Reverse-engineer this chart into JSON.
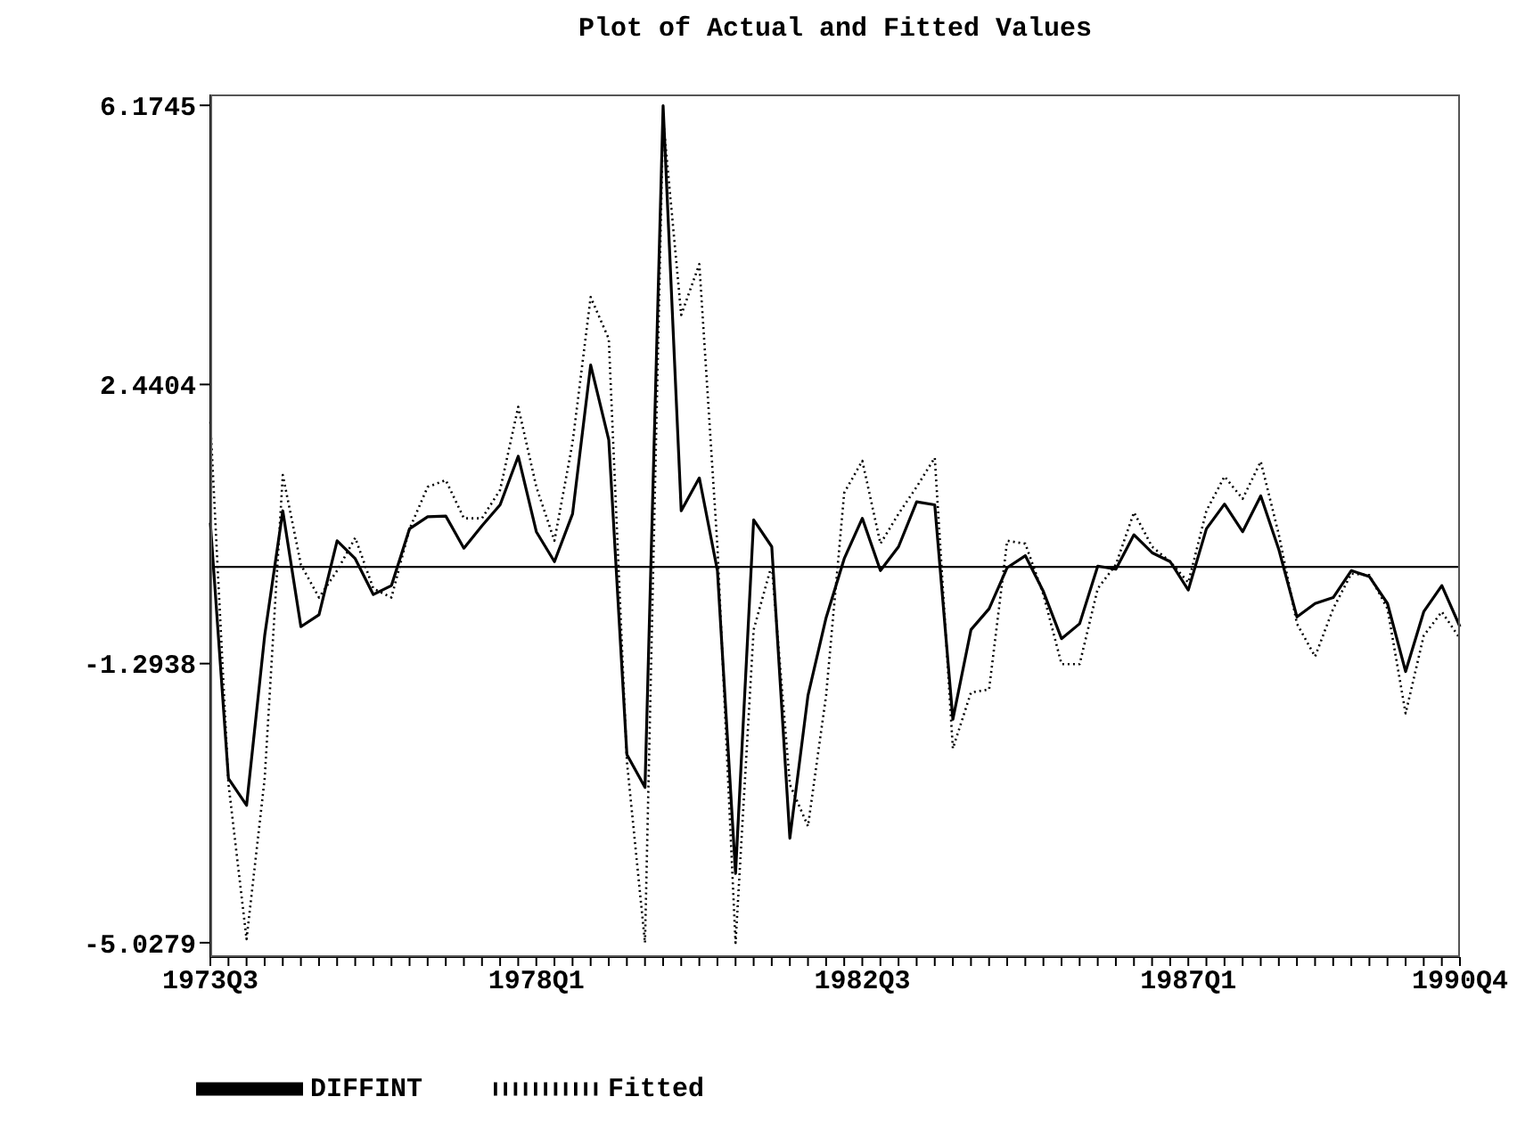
{
  "chart_data": {
    "type": "line",
    "title": "Plot of Actual and Fitted Values",
    "categories": [
      "1973Q3",
      null,
      null,
      null,
      null,
      null,
      null,
      null,
      null,
      null,
      null,
      null,
      null,
      null,
      null,
      null,
      null,
      null,
      "1978Q1",
      null,
      null,
      null,
      null,
      null,
      null,
      null,
      null,
      null,
      null,
      null,
      null,
      null,
      null,
      null,
      null,
      null,
      "1982Q3",
      null,
      null,
      null,
      null,
      null,
      null,
      null,
      null,
      null,
      null,
      null,
      null,
      null,
      null,
      null,
      null,
      null,
      "1987Q1",
      null,
      null,
      null,
      null,
      null,
      null,
      null,
      null,
      null,
      null,
      null,
      null,
      null,
      null,
      "1990Q4"
    ],
    "series": [
      {
        "name": "DIFFINT",
        "color": "#000000",
        "line_style": "solid",
        "values": [
          0.59,
          -2.83,
          -3.19,
          -0.92,
          0.75,
          -0.8,
          -0.64,
          0.35,
          0.11,
          -0.37,
          -0.25,
          0.51,
          0.67,
          0.68,
          0.25,
          0.55,
          0.83,
          1.48,
          0.47,
          0.07,
          0.71,
          2.7,
          1.7,
          -2.51,
          -2.95,
          6.17,
          0.75,
          1.19,
          -0.05,
          -4.1,
          0.63,
          0.27,
          -3.63,
          -1.72,
          -0.68,
          0.11,
          0.65,
          -0.05,
          0.27,
          0.87,
          0.83,
          -2.04,
          -0.84,
          -0.56,
          -0.01,
          0.15,
          -0.33,
          -0.96,
          -0.76,
          0.01,
          -0.03,
          0.43,
          0.19,
          0.07,
          -0.31,
          0.51,
          0.84,
          0.47,
          0.95,
          0.23,
          -0.67,
          -0.49,
          -0.41,
          -0.05,
          -0.13,
          -0.49,
          -1.4,
          -0.6,
          -0.25,
          -0.8
        ]
      },
      {
        "name": "Fitted",
        "color": "#000000",
        "line_style": "dotted",
        "values": [
          1.94,
          -2.9,
          -4.98,
          -2.83,
          1.23,
          0.03,
          -0.41,
          -0.05,
          0.39,
          -0.29,
          -0.41,
          0.51,
          1.07,
          1.16,
          0.65,
          0.65,
          1.03,
          2.14,
          1.07,
          0.35,
          1.66,
          3.61,
          3.05,
          -2.6,
          -5.03,
          6.0,
          3.37,
          4.05,
          0.27,
          -5.03,
          -0.84,
          0.03,
          -2.91,
          -3.47,
          -1.72,
          0.99,
          1.42,
          0.31,
          0.71,
          1.07,
          1.46,
          -2.43,
          -1.68,
          -1.64,
          0.35,
          0.31,
          -0.37,
          -1.3,
          -1.3,
          -0.29,
          0.03,
          0.73,
          0.27,
          0.07,
          -0.21,
          0.75,
          1.21,
          0.91,
          1.41,
          0.43,
          -0.76,
          -1.2,
          -0.56,
          -0.09,
          -0.11,
          -0.56,
          -1.96,
          -0.92,
          -0.6,
          -0.96
        ]
      }
    ],
    "ylim": [
      -5.22,
      6.32
    ],
    "yticks": [
      6.1745,
      2.4404,
      -1.2938,
      -5.0279
    ],
    "ref_lines": [
      {
        "axis": "y",
        "value": 0,
        "color": "#000000",
        "line_style": "solid"
      }
    ],
    "grid": false,
    "legend": "bottom left",
    "marker": "none"
  }
}
